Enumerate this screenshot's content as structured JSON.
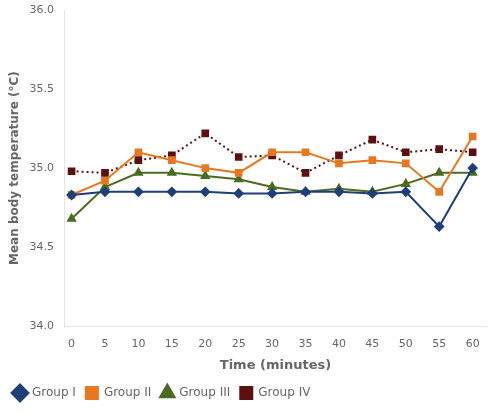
{
  "chart_data": {
    "type": "line",
    "x": [
      0,
      5,
      10,
      15,
      20,
      25,
      30,
      35,
      40,
      45,
      50,
      55,
      60
    ],
    "series": [
      {
        "name": "Group I",
        "color": "#1e3f7a",
        "marker": "diamond",
        "line_style": "solid",
        "values": [
          34.83,
          34.85,
          34.85,
          34.85,
          34.85,
          34.84,
          34.84,
          34.85,
          34.85,
          34.84,
          34.85,
          34.63,
          35.0
        ]
      },
      {
        "name": "Group II",
        "color": "#e87820",
        "marker": "square",
        "line_style": "solid",
        "values": [
          34.83,
          34.92,
          35.1,
          35.05,
          35.0,
          34.97,
          35.1,
          35.1,
          35.03,
          35.05,
          35.03,
          34.85,
          35.2
        ]
      },
      {
        "name": "Group III",
        "color": "#4a6b20",
        "marker": "triangle",
        "line_style": "solid",
        "values": [
          34.68,
          34.88,
          34.97,
          34.97,
          34.95,
          34.93,
          34.88,
          34.85,
          34.87,
          34.85,
          34.9,
          34.97,
          34.97
        ]
      },
      {
        "name": "Group IV",
        "color": "#5c1010",
        "marker": "square",
        "line_style": "dotted",
        "values": [
          34.98,
          34.97,
          35.05,
          35.08,
          35.22,
          35.07,
          35.08,
          34.97,
          35.08,
          35.18,
          35.1,
          35.12,
          35.1
        ]
      }
    ],
    "x_label": "Time (minutes)",
    "y_label": "Mean body temperature (°C)",
    "xlim": [
      -1,
      62
    ],
    "ylim": [
      34.0,
      36.0
    ],
    "xticks": [
      0,
      5,
      10,
      15,
      20,
      25,
      30,
      35,
      40,
      45,
      50,
      55,
      60
    ],
    "yticks": [
      {
        "value": 34.0,
        "label": "34.0"
      },
      34.5,
      {
        "value": 35.0,
        "label": "35.0"
      },
      35.5,
      {
        "value": 36.0,
        "label": "36.0"
      }
    ],
    "grid": false,
    "legend": "lower left"
  }
}
